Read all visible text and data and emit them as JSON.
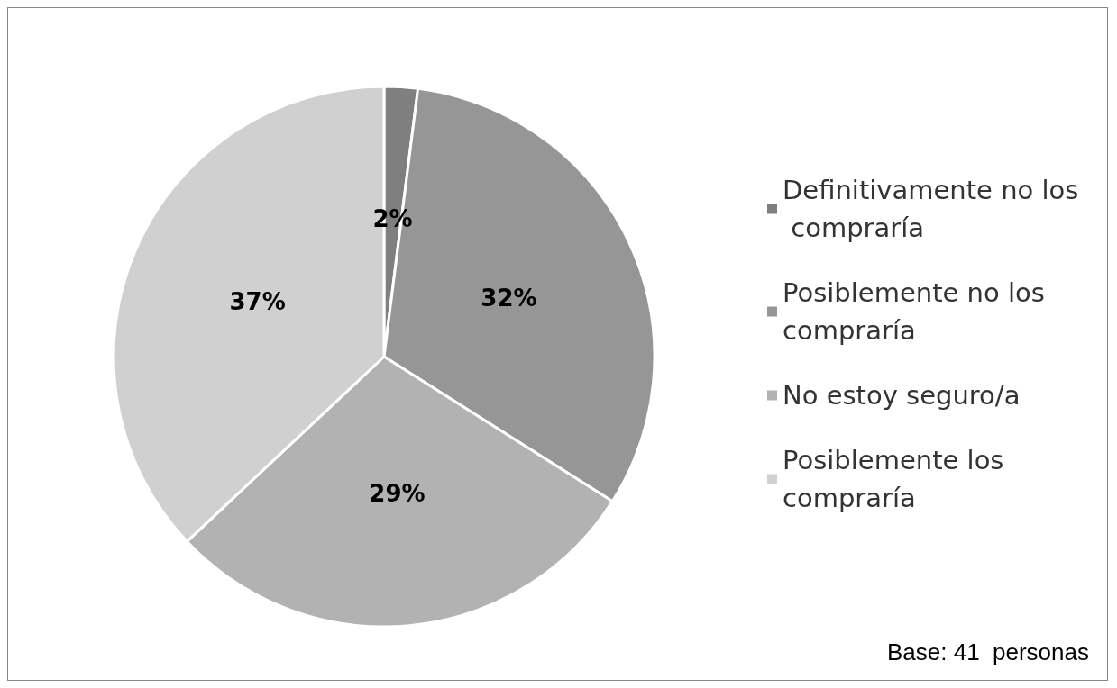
{
  "chart_data": {
    "type": "pie",
    "categories": [
      "Definitivamente no los compraría",
      "Posiblemente no los compraría",
      "No estoy seguro/a",
      "Posiblemente los compraría"
    ],
    "values": [
      2,
      32,
      29,
      37
    ],
    "colors": [
      "#7f7f7f",
      "#969696",
      "#b2b2b2",
      "#d0d0d0"
    ],
    "value_labels": [
      "2%",
      "32%",
      "29%",
      "37%"
    ],
    "legend": "right",
    "annotations": [
      "Base: 41  personas"
    ]
  }
}
